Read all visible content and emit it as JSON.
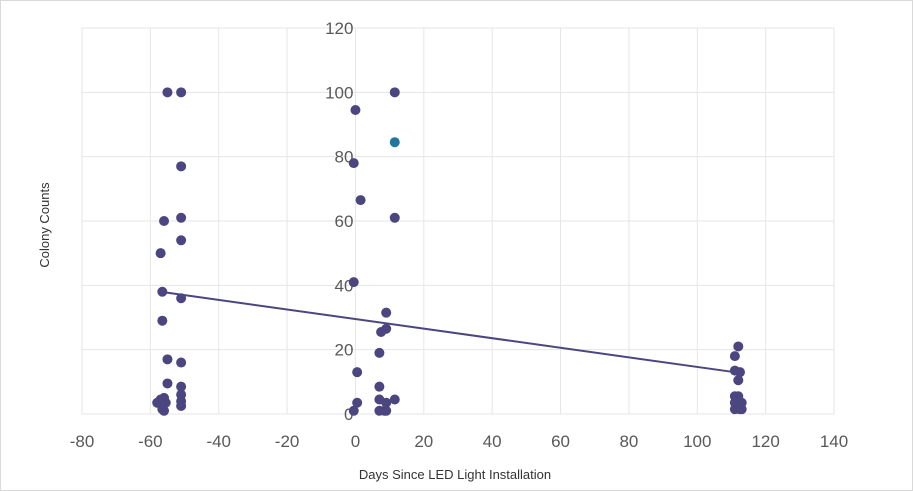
{
  "chart_data": {
    "type": "scatter",
    "xlabel": "Days Since LED Light Installation",
    "ylabel": "Colony Counts",
    "xlim": [
      -80,
      140
    ],
    "ylim": [
      0,
      120
    ],
    "x_ticks": [
      "-80",
      "-60",
      "-40",
      "-20",
      "0",
      "20",
      "40",
      "60",
      "80",
      "100",
      "120",
      "140"
    ],
    "y_ticks": [
      "0",
      "20",
      "40",
      "60",
      "80",
      "100",
      "120"
    ],
    "grid": true,
    "legend": "none",
    "colors": {
      "points": "#4b4680",
      "highlight": "#1f77a0",
      "trendline": "#4b4680",
      "grid": "#e6e6e6"
    },
    "series": [
      {
        "points": [
          [
            -55,
            100
          ],
          [
            -51,
            100
          ],
          [
            -51,
            77
          ],
          [
            -56,
            60
          ],
          [
            -51,
            61
          ],
          [
            -51,
            54
          ],
          [
            -57,
            50
          ],
          [
            -56.5,
            38
          ],
          [
            -51,
            36
          ],
          [
            -56.5,
            29
          ],
          [
            -55,
            17
          ],
          [
            -51,
            16
          ],
          [
            -55,
            9.5
          ],
          [
            -51,
            8.5
          ],
          [
            -51,
            6
          ],
          [
            -51,
            4
          ],
          [
            -51,
            2.5
          ],
          [
            -56,
            5
          ],
          [
            -57,
            4.5
          ],
          [
            -58,
            3.5
          ],
          [
            -55.5,
            3.5
          ],
          [
            -56.5,
            1.5
          ],
          [
            -56,
            1
          ],
          [
            0,
            94.5
          ],
          [
            -0.5,
            78
          ],
          [
            1.5,
            66.5
          ],
          [
            -0.5,
            41
          ],
          [
            0.5,
            13
          ],
          [
            0.5,
            3.5
          ],
          [
            -0.5,
            1
          ],
          [
            11.5,
            100
          ],
          [
            11.5,
            61
          ],
          [
            9,
            31.5
          ],
          [
            9,
            26.5
          ],
          [
            7.5,
            25.5
          ],
          [
            7,
            19
          ],
          [
            7,
            8.5
          ],
          [
            7,
            4.5
          ],
          [
            9,
            3.5
          ],
          [
            11.5,
            4.5
          ],
          [
            7,
            1
          ],
          [
            8.5,
            1
          ],
          [
            9,
            1
          ],
          [
            112,
            21
          ],
          [
            111,
            18
          ],
          [
            111,
            13.5
          ],
          [
            112.5,
            13
          ],
          [
            112,
            10.5
          ],
          [
            111,
            5.5
          ],
          [
            112,
            5.5
          ],
          [
            113,
            3.5
          ],
          [
            111,
            3.5
          ],
          [
            112,
            2.5
          ],
          [
            111,
            1.5
          ],
          [
            112.5,
            1.5
          ],
          [
            113,
            1.5
          ]
        ]
      },
      {
        "highlight": true,
        "points": [
          [
            11.5,
            84.5
          ]
        ]
      }
    ],
    "trendline": {
      "x": [
        -57,
        111
      ],
      "y": [
        38,
        13
      ]
    }
  }
}
